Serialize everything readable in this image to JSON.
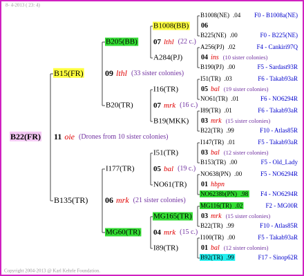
{
  "date": "8- 4-2013 ( 23: 4)",
  "copyright": "Copyright 2004-2013 @ Karl Kehrle Foundation.",
  "root": {
    "name": "B22(FR)",
    "highlight": "#f4c8f4",
    "num": "11",
    "mark": "oie",
    "note": "(Drones from 10 sister colonies)"
  },
  "gen1": [
    {
      "name": "B15(FR)",
      "highlight": "#ffff40",
      "num": "09",
      "mark": "lthl",
      "note": "(33 sister colonies)"
    },
    {
      "name": "B135(TR)",
      "num": "06",
      "mark": "mrk",
      "note": "(21 sister colonies)"
    }
  ],
  "gen2": [
    {
      "name": "B205(BB)",
      "highlight": "#33dd33",
      "num": "07",
      "mark": "lthl",
      "note": "(22 c.)"
    },
    {
      "name": "B20(TR)",
      "num": "07",
      "mark": "mrk",
      "note": "(16 c.)"
    },
    {
      "name": "I177(TR)",
      "num": "05",
      "mark": "bal",
      "note": "(19 c.)"
    },
    {
      "name": "MG60(TR)",
      "highlight": "#33dd33",
      "num": "04",
      "mark": "mrk",
      "note": "(15 c.)"
    }
  ],
  "gen3": [
    {
      "name": "B1008(BB)",
      "highlight": "#ffff40"
    },
    {
      "name": "A284(PJ)"
    },
    {
      "name": "I16(TR)"
    },
    {
      "name": "B19(MKK)"
    },
    {
      "name": "I51(TR)"
    },
    {
      "name": "NO61(TR)"
    },
    {
      "name": "MG165(TR)",
      "highlight": "#33dd33"
    },
    {
      "name": "I89(TR)"
    }
  ],
  "gen4": [
    {
      "queen": {
        "name": "B1008(NE)",
        "value": ".04",
        "line": "F0 - B1008a(NE)"
      },
      "num": "06",
      "drone": {
        "name": "B225(NE)",
        "value": ".00",
        "line": "F0 - B225(NE)"
      }
    },
    {
      "queen": {
        "name": "A256(PJ)",
        "value": ".02",
        "line": "F4 - Cankiri97Q"
      },
      "num": "04",
      "mark": "ins",
      "note": "(10 sister colonies)",
      "drone": {
        "name": "B190(PJ)",
        "value": ".00",
        "line": "F5 - Sardast93R"
      }
    },
    {
      "queen": {
        "name": "I51(TR)",
        "value": ".03",
        "line": "F6 - Takab93aR"
      },
      "num": "05",
      "mark": "bal",
      "note": "(19 sister colonies)",
      "drone": {
        "name": "NO61(TR)",
        "value": ".01",
        "line": "F6 - NO6294R"
      }
    },
    {
      "queen": {
        "name": "I89(TR)",
        "value": ".01",
        "line": "F6 - Takab93aR"
      },
      "num": "03",
      "mark": "mrk",
      "note": "(15 sister colonies)",
      "drone": {
        "name": "B22(TR)",
        "value": ".99",
        "line": "F10 - Atlas85R"
      }
    },
    {
      "queen": {
        "name": "I147(TR)",
        "value": ".01",
        "line": "F5 - Takab93aR"
      },
      "num": "03",
      "mark": "bal",
      "note": "(12 sister colonies)",
      "drone": {
        "name": "B153(TR)",
        "value": ".00",
        "line": "F5 - Old_Lady"
      }
    },
    {
      "queen": {
        "name": "NO638(PN)",
        "value": ".00",
        "line": "F5 - NO6294R"
      },
      "num": "01",
      "mark": "hbpn",
      "drone": {
        "name": "NO6238b(PN)",
        "value": ".98",
        "line": "F4 - NO6294R",
        "highlight": "#33dd33"
      }
    },
    {
      "queen": {
        "name": "MG116(TR)",
        "value": ".02",
        "line": "F2 - MG00R",
        "highlight": "#33dd33"
      },
      "num": "03",
      "mark": "mrk",
      "note": "(15 sister colonies)",
      "drone": {
        "name": "B22(TR)",
        "value": ".99",
        "line": "F10 - Atlas85R"
      }
    },
    {
      "queen": {
        "name": "I100(TR)",
        "value": ".00",
        "line": "F5 - Takab93aR"
      },
      "num": "01",
      "mark": "bal",
      "note": "(12 sister colonies)",
      "drone": {
        "name": "B92(TR)",
        "value": ".99",
        "line": "F17 - Sinop62R",
        "highlight": "#22eeee"
      }
    }
  ]
}
